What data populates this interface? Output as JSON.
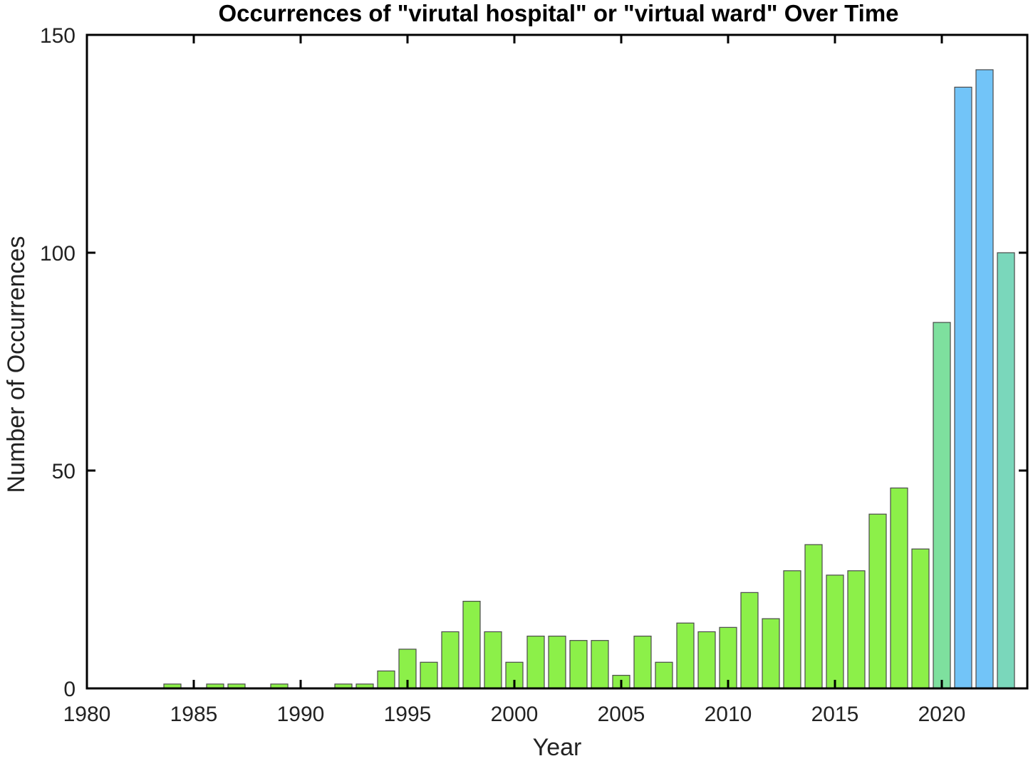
{
  "chart_data": {
    "type": "bar",
    "title": "Occurrences of \"virutal hospital\" or \"virtual ward\" Over Time",
    "xlabel": "Year",
    "ylabel": "Number of Occurrences",
    "xlim": [
      1980,
      2024
    ],
    "ylim": [
      0,
      150
    ],
    "xticks": [
      1980,
      1985,
      1990,
      1995,
      2000,
      2005,
      2010,
      2015,
      2020
    ],
    "yticks": [
      0,
      50,
      100,
      150
    ],
    "grid": false,
    "x": [
      1984,
      1986,
      1987,
      1989,
      1992,
      1993,
      1994,
      1995,
      1996,
      1997,
      1998,
      1999,
      2000,
      2001,
      2002,
      2003,
      2004,
      2005,
      2006,
      2007,
      2008,
      2009,
      2010,
      2011,
      2012,
      2013,
      2014,
      2015,
      2016,
      2017,
      2018,
      2019,
      2020,
      2021,
      2022,
      2023
    ],
    "values": [
      1,
      1,
      1,
      1,
      1,
      1,
      4,
      9,
      6,
      13,
      20,
      13,
      6,
      12,
      12,
      11,
      11,
      3,
      12,
      6,
      15,
      13,
      14,
      22,
      16,
      27,
      33,
      26,
      27,
      40,
      46,
      32,
      84,
      138,
      142,
      100
    ],
    "colors": {
      "low": "#8cf049",
      "mid": "#7edfa1",
      "high": "#72c4f8",
      "edge": "#4a4a4a",
      "axis": "#000000"
    }
  }
}
